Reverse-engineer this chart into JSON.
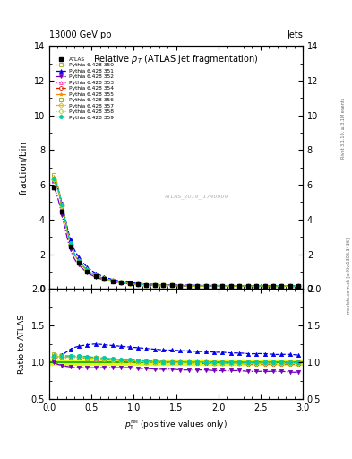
{
  "title": "Relative $p_{T}$ (ATLAS jet fragmentation)",
  "header_left": "13000 GeV pp",
  "header_right": "Jets",
  "ylabel_main": "fraction/bin",
  "ylabel_ratio": "Ratio to ATLAS",
  "xlabel": "$p_{\\mathrm{T}}^{\\mathrm{rel}}$ (positive values only)",
  "watermark": "ATLAS_2019_I1740909",
  "right_label": "Rivet 3.1.10, ≥ 3.1M events",
  "right_label2": "mcplots.cern.ch [arXiv:1306.3436]",
  "x_data": [
    0.05,
    0.15,
    0.25,
    0.35,
    0.45,
    0.55,
    0.65,
    0.75,
    0.85,
    0.95,
    1.05,
    1.15,
    1.25,
    1.35,
    1.45,
    1.55,
    1.65,
    1.75,
    1.85,
    1.95,
    2.05,
    2.15,
    2.25,
    2.35,
    2.45,
    2.55,
    2.65,
    2.75,
    2.85,
    2.95
  ],
  "atlas_y": [
    5.85,
    4.45,
    2.42,
    1.5,
    1.01,
    0.73,
    0.56,
    0.44,
    0.36,
    0.305,
    0.265,
    0.238,
    0.218,
    0.205,
    0.195,
    0.188,
    0.182,
    0.177,
    0.173,
    0.17,
    0.167,
    0.164,
    0.162,
    0.16,
    0.158,
    0.156,
    0.154,
    0.153,
    0.151,
    0.15
  ],
  "atlas_yerr": [
    0.12,
    0.1,
    0.07,
    0.05,
    0.03,
    0.025,
    0.02,
    0.016,
    0.014,
    0.012,
    0.01,
    0.009,
    0.008,
    0.008,
    0.007,
    0.007,
    0.007,
    0.007,
    0.007,
    0.007,
    0.006,
    0.006,
    0.006,
    0.006,
    0.006,
    0.006,
    0.006,
    0.006,
    0.006,
    0.006
  ],
  "pythia_configs": [
    {
      "label": "Pythia 6.428 350",
      "color": "#aaaa00",
      "linestyle": "--",
      "marker": "s",
      "fillstyle": "none",
      "y_scale": [
        1.12,
        1.1,
        1.08,
        1.06,
        1.05,
        1.04,
        1.04,
        1.03,
        1.03,
        1.03,
        1.02,
        1.02,
        1.02,
        1.01,
        1.01,
        1.01,
        1.01,
        1.01,
        1.01,
        1.01,
        1.01,
        1.01,
        1.01,
        1.01,
        1.01,
        1.01,
        1.01,
        1.01,
        1.01,
        1.01
      ],
      "ratio": [
        1.12,
        1.1,
        1.08,
        1.06,
        1.05,
        1.04,
        1.04,
        1.03,
        1.03,
        1.03,
        1.02,
        1.02,
        1.02,
        1.01,
        1.01,
        1.01,
        1.01,
        1.01,
        1.01,
        1.01,
        1.01,
        1.01,
        1.01,
        1.01,
        1.01,
        1.01,
        1.01,
        1.01,
        1.01,
        1.01
      ]
    },
    {
      "label": "Pythia 6.428 351",
      "color": "#0000ee",
      "linestyle": "--",
      "marker": "^",
      "fillstyle": "full",
      "y_scale": [
        1.07,
        1.1,
        1.18,
        1.22,
        1.24,
        1.25,
        1.24,
        1.23,
        1.22,
        1.21,
        1.2,
        1.19,
        1.18,
        1.17,
        1.17,
        1.16,
        1.16,
        1.15,
        1.15,
        1.14,
        1.14,
        1.13,
        1.13,
        1.12,
        1.12,
        1.12,
        1.11,
        1.11,
        1.11,
        1.1
      ],
      "ratio": [
        1.07,
        1.1,
        1.18,
        1.22,
        1.24,
        1.25,
        1.24,
        1.23,
        1.22,
        1.21,
        1.2,
        1.19,
        1.18,
        1.17,
        1.17,
        1.16,
        1.16,
        1.15,
        1.15,
        1.14,
        1.14,
        1.13,
        1.13,
        1.12,
        1.12,
        1.12,
        1.11,
        1.11,
        1.11,
        1.1
      ]
    },
    {
      "label": "Pythia 6.428 352",
      "color": "#7700bb",
      "linestyle": "-.",
      "marker": "v",
      "fillstyle": "full",
      "y_scale": [
        1.0,
        0.96,
        0.94,
        0.93,
        0.93,
        0.93,
        0.93,
        0.93,
        0.93,
        0.93,
        0.92,
        0.92,
        0.91,
        0.91,
        0.91,
        0.9,
        0.9,
        0.9,
        0.9,
        0.89,
        0.89,
        0.89,
        0.89,
        0.88,
        0.88,
        0.88,
        0.88,
        0.88,
        0.87,
        0.87
      ],
      "ratio": [
        1.0,
        0.96,
        0.94,
        0.93,
        0.93,
        0.93,
        0.93,
        0.93,
        0.93,
        0.93,
        0.92,
        0.92,
        0.91,
        0.91,
        0.91,
        0.9,
        0.9,
        0.9,
        0.9,
        0.89,
        0.89,
        0.89,
        0.89,
        0.88,
        0.88,
        0.88,
        0.88,
        0.88,
        0.87,
        0.87
      ]
    },
    {
      "label": "Pythia 6.428 353",
      "color": "#ff44aa",
      "linestyle": ":",
      "marker": "^",
      "fillstyle": "none",
      "y_scale": [
        1.06,
        1.06,
        1.07,
        1.07,
        1.06,
        1.05,
        1.04,
        1.04,
        1.03,
        1.03,
        1.02,
        1.02,
        1.01,
        1.01,
        1.01,
        1.0,
        1.0,
        1.0,
        1.0,
        1.0,
        1.0,
        1.0,
        1.0,
        1.0,
        1.0,
        1.0,
        1.0,
        1.0,
        1.0,
        1.0
      ],
      "ratio": [
        1.06,
        1.06,
        1.07,
        1.07,
        1.06,
        1.05,
        1.04,
        1.04,
        1.03,
        1.03,
        1.02,
        1.02,
        1.01,
        1.01,
        1.01,
        1.0,
        1.0,
        1.0,
        1.0,
        1.0,
        1.0,
        1.0,
        1.0,
        1.0,
        1.0,
        1.0,
        1.0,
        1.0,
        1.0,
        1.0
      ]
    },
    {
      "label": "Pythia 6.428 354",
      "color": "#dd2200",
      "linestyle": "--",
      "marker": "o",
      "fillstyle": "none",
      "y_scale": [
        1.08,
        1.08,
        1.08,
        1.08,
        1.07,
        1.06,
        1.05,
        1.04,
        1.03,
        1.03,
        1.02,
        1.01,
        1.01,
        1.01,
        1.0,
        1.0,
        1.0,
        0.99,
        0.99,
        0.99,
        0.99,
        0.99,
        0.99,
        0.98,
        0.98,
        0.98,
        0.98,
        0.98,
        0.98,
        0.98
      ],
      "ratio": [
        1.08,
        1.08,
        1.08,
        1.08,
        1.07,
        1.06,
        1.05,
        1.04,
        1.03,
        1.03,
        1.02,
        1.01,
        1.01,
        1.01,
        1.0,
        1.0,
        1.0,
        0.99,
        0.99,
        0.99,
        0.99,
        0.99,
        0.99,
        0.98,
        0.98,
        0.98,
        0.98,
        0.98,
        0.98,
        0.98
      ]
    },
    {
      "label": "Pythia 6.428 355",
      "color": "#ff8800",
      "linestyle": "--",
      "marker": "*",
      "fillstyle": "full",
      "y_scale": [
        1.08,
        1.08,
        1.08,
        1.08,
        1.07,
        1.06,
        1.05,
        1.04,
        1.03,
        1.03,
        1.02,
        1.01,
        1.01,
        1.01,
        1.0,
        1.0,
        1.0,
        1.0,
        1.0,
        0.99,
        0.99,
        0.99,
        0.99,
        0.99,
        0.99,
        0.99,
        0.99,
        0.99,
        0.99,
        0.99
      ],
      "ratio": [
        1.08,
        1.08,
        1.08,
        1.08,
        1.07,
        1.06,
        1.05,
        1.04,
        1.03,
        1.03,
        1.02,
        1.01,
        1.01,
        1.01,
        1.0,
        1.0,
        1.0,
        1.0,
        1.0,
        0.99,
        0.99,
        0.99,
        0.99,
        0.99,
        0.99,
        0.99,
        0.99,
        0.99,
        0.99,
        0.99
      ]
    },
    {
      "label": "Pythia 6.428 356",
      "color": "#88aa00",
      "linestyle": ":",
      "marker": "s",
      "fillstyle": "none",
      "y_scale": [
        1.08,
        1.08,
        1.08,
        1.08,
        1.07,
        1.06,
        1.05,
        1.04,
        1.03,
        1.03,
        1.02,
        1.01,
        1.01,
        1.01,
        1.0,
        1.0,
        1.0,
        1.0,
        1.0,
        0.99,
        0.99,
        0.99,
        0.99,
        0.99,
        0.99,
        0.99,
        0.99,
        0.99,
        0.99,
        0.99
      ],
      "ratio": [
        1.08,
        1.08,
        1.08,
        1.08,
        1.07,
        1.06,
        1.05,
        1.04,
        1.03,
        1.03,
        1.02,
        1.01,
        1.01,
        1.01,
        1.0,
        1.0,
        1.0,
        1.0,
        1.0,
        0.99,
        0.99,
        0.99,
        0.99,
        0.99,
        0.99,
        0.99,
        0.99,
        0.99,
        0.99,
        0.99
      ]
    },
    {
      "label": "Pythia 6.428 357",
      "color": "#ddbb00",
      "linestyle": "-.",
      "marker": "D",
      "fillstyle": "none",
      "y_scale": [
        1.08,
        1.08,
        1.08,
        1.08,
        1.07,
        1.06,
        1.05,
        1.04,
        1.03,
        1.03,
        1.02,
        1.01,
        1.01,
        1.01,
        1.0,
        1.0,
        1.0,
        1.0,
        1.0,
        0.99,
        0.99,
        0.99,
        0.99,
        0.99,
        0.99,
        0.99,
        0.99,
        0.99,
        0.99,
        0.99
      ],
      "ratio": [
        1.08,
        1.08,
        1.08,
        1.08,
        1.07,
        1.06,
        1.05,
        1.04,
        1.03,
        1.03,
        1.02,
        1.01,
        1.01,
        1.01,
        1.0,
        1.0,
        1.0,
        1.0,
        1.0,
        0.99,
        0.99,
        0.99,
        0.99,
        0.99,
        0.99,
        0.99,
        0.99,
        0.99,
        0.99,
        0.99
      ]
    },
    {
      "label": "Pythia 6.428 358",
      "color": "#aadd22",
      "linestyle": ":",
      "marker": "D",
      "fillstyle": "none",
      "y_scale": [
        1.08,
        1.08,
        1.08,
        1.08,
        1.07,
        1.06,
        1.05,
        1.04,
        1.03,
        1.03,
        1.02,
        1.01,
        1.01,
        1.01,
        1.0,
        1.0,
        1.0,
        1.0,
        1.0,
        0.99,
        0.99,
        0.99,
        0.99,
        0.99,
        0.99,
        0.99,
        0.99,
        0.99,
        0.99,
        0.99
      ],
      "ratio": [
        1.08,
        1.08,
        1.08,
        1.08,
        1.07,
        1.06,
        1.05,
        1.04,
        1.03,
        1.03,
        1.02,
        1.01,
        1.01,
        1.01,
        1.0,
        1.0,
        1.0,
        1.0,
        1.0,
        0.99,
        0.99,
        0.99,
        0.99,
        0.99,
        0.99,
        0.99,
        0.99,
        0.99,
        0.99,
        0.99
      ]
    },
    {
      "label": "Pythia 6.428 359",
      "color": "#00ccaa",
      "linestyle": "--",
      "marker": "o",
      "fillstyle": "full",
      "y_scale": [
        1.09,
        1.09,
        1.09,
        1.09,
        1.08,
        1.07,
        1.06,
        1.05,
        1.04,
        1.04,
        1.03,
        1.02,
        1.02,
        1.01,
        1.01,
        1.01,
        1.0,
        1.0,
        1.0,
        1.0,
        1.0,
        1.0,
        1.0,
        1.0,
        1.0,
        1.0,
        1.0,
        1.0,
        1.0,
        1.0
      ],
      "ratio": [
        1.09,
        1.09,
        1.09,
        1.09,
        1.08,
        1.07,
        1.06,
        1.05,
        1.04,
        1.04,
        1.03,
        1.02,
        1.02,
        1.01,
        1.01,
        1.01,
        1.0,
        1.0,
        1.0,
        1.0,
        1.0,
        1.0,
        1.0,
        1.0,
        1.0,
        1.0,
        1.0,
        1.0,
        1.0,
        1.0
      ]
    }
  ],
  "xlim": [
    0,
    3
  ],
  "ylim_main": [
    0,
    14
  ],
  "ylim_ratio": [
    0.5,
    2.0
  ],
  "yticks_main": [
    0,
    2,
    4,
    6,
    8,
    10,
    12,
    14
  ],
  "yticks_ratio": [
    0.5,
    1.0,
    1.5,
    2.0
  ]
}
